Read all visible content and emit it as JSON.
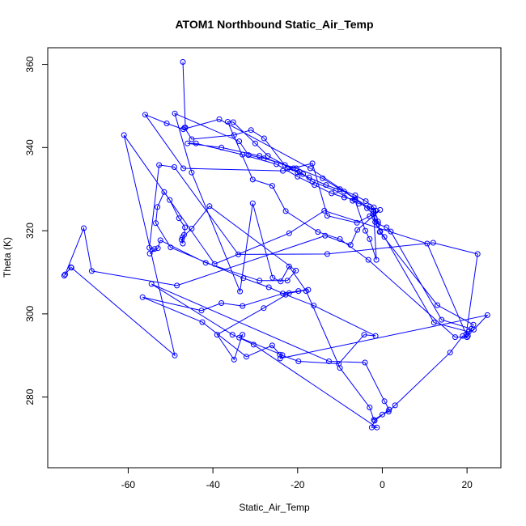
{
  "chart_data": {
    "type": "line",
    "title": "ATOM1 Northbound Static_Air_Temp",
    "xlabel": "Static_Air_Temp",
    "ylabel": "Theta (K)",
    "xlim": [
      -79,
      28
    ],
    "ylim": [
      263,
      364
    ],
    "xticks": [
      -60,
      -40,
      -20,
      0,
      20
    ],
    "yticks": [
      280,
      300,
      320,
      340,
      360
    ],
    "xtick_labels": [
      "-60",
      "-40",
      "-20",
      "0",
      "20"
    ],
    "ytick_labels": [
      "280",
      "300",
      "320",
      "340",
      "360"
    ],
    "grid": false,
    "legend": "none",
    "series": [
      {
        "color": "#0000ff",
        "marker": "open-circle",
        "points": [
          [
            -47.1,
            360.6
          ],
          [
            -46.5,
            344.8
          ],
          [
            -46.7,
            344.8
          ],
          [
            -45.0,
            342.0
          ],
          [
            -35.0,
            343.0
          ],
          [
            -31.0,
            344.2
          ],
          [
            -27.9,
            342.2
          ],
          [
            -22.4,
            334.9
          ],
          [
            -19.6,
            334.2
          ],
          [
            -18.7,
            333.6
          ],
          [
            -16.5,
            331.8
          ],
          [
            -11.0,
            329.6
          ],
          [
            -7.0,
            327.2
          ],
          [
            -5.5,
            326.5
          ],
          [
            -3.0,
            325.8
          ],
          [
            -1.5,
            324.8
          ],
          [
            -1.8,
            323.1
          ],
          [
            -1.0,
            321.6
          ],
          [
            1.0,
            320.8
          ],
          [
            2.0,
            319.8
          ],
          [
            14.0,
            298.6
          ],
          [
            21.0,
            296.4
          ],
          [
            20.2,
            294.7
          ],
          [
            19.0,
            294.7
          ],
          [
            16.0,
            290.7
          ],
          [
            3.0,
            278.0
          ],
          [
            1.5,
            276.5
          ],
          [
            0.0,
            275.8
          ],
          [
            -2.0,
            274.5
          ],
          [
            -3.0,
            277.5
          ],
          [
            -10.0,
            287.0
          ],
          [
            -18.0,
            305.5
          ],
          [
            -22.0,
            311.4
          ],
          [
            -24.0,
            307.8
          ],
          [
            -25.9,
            308.7
          ],
          [
            -30.6,
            326.6
          ],
          [
            -33.6,
            305.4
          ],
          [
            -45.0,
            334.0
          ],
          [
            -49.0,
            348.2
          ],
          [
            -33.8,
            341.5
          ],
          [
            -31.6,
            338.2
          ],
          [
            -27.9,
            337.4
          ],
          [
            -20.3,
            335.0
          ],
          [
            -14.1,
            332.6
          ],
          [
            -10.0,
            330.0
          ],
          [
            -6.4,
            328.5
          ],
          [
            -3.9,
            327.1
          ],
          [
            -2.0,
            325.6
          ],
          [
            -1.0,
            322.2
          ],
          [
            -0.6,
            319.7
          ],
          [
            13.0,
            302.1
          ],
          [
            21.5,
            297.4
          ],
          [
            20.0,
            294.4
          ],
          [
            17.2,
            294.4
          ],
          [
            -3.3,
            313.0
          ],
          [
            -10.0,
            318.0
          ],
          [
            -15.2,
            319.7
          ],
          [
            -22.8,
            324.7
          ],
          [
            -26.0,
            330.8
          ],
          [
            -30.6,
            332.3
          ],
          [
            -36.5,
            346.2
          ],
          [
            -35.2,
            346.1
          ],
          [
            -30.0,
            341.0
          ],
          [
            -27.0,
            338.0
          ],
          [
            -23.0,
            335.8
          ],
          [
            -20.0,
            334.0
          ],
          [
            -17.3,
            332.8
          ],
          [
            -13.3,
            331.0
          ],
          [
            -9.0,
            329.4
          ],
          [
            -6.4,
            327.6
          ],
          [
            -3.6,
            325.4
          ],
          [
            -2.2,
            324.0
          ],
          [
            -1.7,
            322.1
          ],
          [
            -0.5,
            319.8
          ],
          [
            0.5,
            318.5
          ],
          [
            12.2,
            297.9
          ],
          [
            20.4,
            295.7
          ],
          [
            21.6,
            296.2
          ],
          [
            24.8,
            299.7
          ],
          [
            -24.1,
            289.3
          ],
          [
            -23.6,
            290.1
          ],
          [
            -35.4,
            295.0
          ],
          [
            -54.5,
            307.2
          ],
          [
            -12.6,
            288.6
          ],
          [
            -4.1,
            288.3
          ],
          [
            0.5,
            279.0
          ],
          [
            1.6,
            277.0
          ],
          [
            -1.8,
            274.3
          ],
          [
            -2.5,
            272.7
          ],
          [
            -1.3,
            272.7
          ],
          [
            -30.4,
            292.6
          ],
          [
            -33.8,
            294.3
          ],
          [
            -33.0,
            295.0
          ],
          [
            -35.0,
            289.0
          ],
          [
            -39.0,
            295.0
          ],
          [
            -28.0,
            301.4
          ],
          [
            -22.0,
            305.0
          ],
          [
            -17.5,
            305.8
          ],
          [
            -19.8,
            305.5
          ],
          [
            -23.5,
            304.9
          ],
          [
            -33.0,
            301.9
          ],
          [
            -38.0,
            302.6
          ],
          [
            -42.7,
            300.8
          ],
          [
            -56.6,
            304.0
          ],
          [
            -42.5,
            298.0
          ],
          [
            -32.1,
            289.7
          ],
          [
            -26.0,
            292.4
          ],
          [
            -24.2,
            290.2
          ],
          [
            -19.8,
            288.6
          ],
          [
            -10.3,
            288.0
          ],
          [
            -4.3,
            295.0
          ],
          [
            -1.6,
            294.7
          ],
          [
            -16.2,
            302.0
          ],
          [
            -22.8,
            304.6
          ],
          [
            -26.8,
            306.4
          ],
          [
            -32.8,
            308.6
          ],
          [
            -50.0,
            316.0
          ],
          [
            -53.5,
            321.8
          ],
          [
            -53.1,
            325.7
          ],
          [
            -51.5,
            329.3
          ],
          [
            -50.2,
            327.4
          ],
          [
            -48.0,
            323.0
          ],
          [
            -46.6,
            320.8
          ],
          [
            -46.8,
            319.0
          ],
          [
            -47.4,
            317.8
          ],
          [
            -47.1,
            316.9
          ],
          [
            -47.2,
            318.4
          ],
          [
            -45.0,
            320.5
          ],
          [
            -40.8,
            325.9
          ],
          [
            -20.4,
            310.4
          ],
          [
            -22.4,
            308.0
          ],
          [
            -29.0,
            308.0
          ],
          [
            -41.7,
            312.3
          ],
          [
            -52.4,
            317.7
          ],
          [
            -53.0,
            315.8
          ],
          [
            -54.9,
            314.5
          ],
          [
            -53.8,
            315.6
          ],
          [
            -55.0,
            315.9
          ],
          [
            -52.7,
            335.8
          ],
          [
            -49.1,
            335.3
          ],
          [
            -34.0,
            314.3
          ],
          [
            -13.0,
            314.4
          ],
          [
            12.0,
            317.1
          ],
          [
            22.5,
            314.4
          ],
          [
            19.8,
            295.1
          ],
          [
            10.6,
            316.9
          ],
          [
            -13.7,
            324.8
          ],
          [
            -22.0,
            319.4
          ],
          [
            -39.6,
            312.0
          ],
          [
            -61.0,
            343.0
          ],
          [
            -49.0,
            290.0
          ],
          [
            -73.4,
            311.1
          ],
          [
            -73.5,
            311.2
          ],
          [
            -75.1,
            309.2
          ],
          [
            -74.9,
            309.5
          ],
          [
            -70.5,
            320.6
          ],
          [
            -68.6,
            310.3
          ],
          [
            -48.5,
            306.8
          ],
          [
            -13.5,
            318.8
          ],
          [
            -7.5,
            316.6
          ],
          [
            -5.9,
            320.2
          ],
          [
            -0.5,
            325.0
          ],
          [
            -3.0,
            323.5
          ],
          [
            -6.0,
            321.9
          ],
          [
            -13.0,
            323.6
          ],
          [
            -16.5,
            336.2
          ],
          [
            -23.5,
            334.4
          ],
          [
            -47.0,
            335.0
          ],
          [
            -56.0,
            347.9
          ],
          [
            -50.9,
            345.8
          ],
          [
            -47.0,
            344.4
          ],
          [
            -38.5,
            346.8
          ],
          [
            -17.0,
            335.0
          ],
          [
            -2.1,
            324.8
          ],
          [
            -1.4,
            313.0
          ],
          [
            -3.0,
            318.0
          ],
          [
            -4.0,
            320.0
          ],
          [
            -6.5,
            327.5
          ],
          [
            -9.0,
            328.0
          ],
          [
            -12.0,
            329.0
          ],
          [
            -16.0,
            331.0
          ],
          [
            -20.0,
            333.0
          ],
          [
            -25.0,
            336.0
          ],
          [
            -33.0,
            338.3
          ],
          [
            -44.0,
            341.0
          ],
          [
            -46.0,
            341.0
          ],
          [
            -38.0,
            340.0
          ],
          [
            -29.0,
            338.0
          ],
          [
            -21.0,
            335.0
          ]
        ]
      }
    ]
  }
}
